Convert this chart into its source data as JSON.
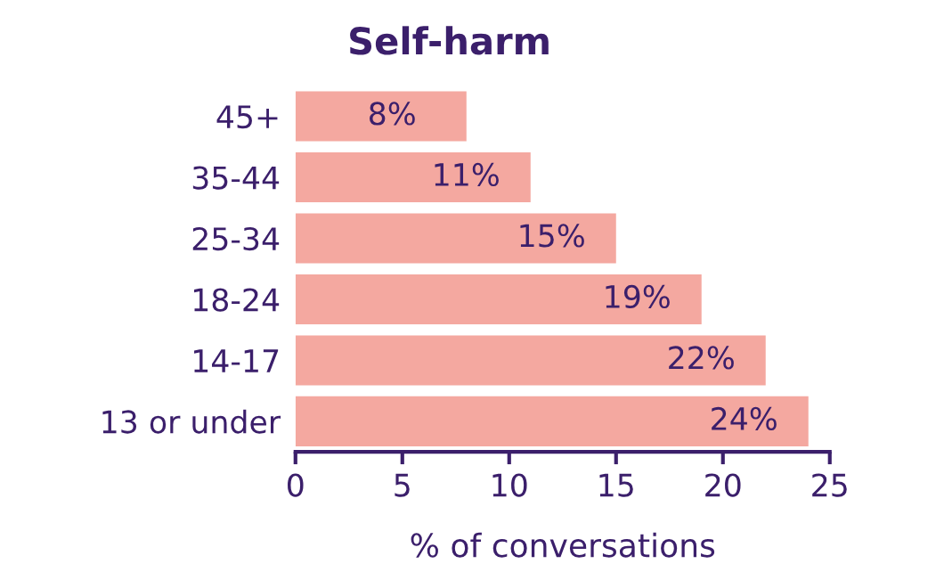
{
  "chart_data": {
    "type": "bar",
    "orientation": "horizontal",
    "title": "Self-harm",
    "xlabel": "% of conversations",
    "categories": [
      "45+",
      "35-44",
      "25-34",
      "18-24",
      "14-17",
      "13 or under"
    ],
    "values": [
      8,
      11,
      15,
      19,
      22,
      24
    ],
    "value_labels": [
      "8%",
      "11%",
      "15%",
      "19%",
      "22%",
      "24%"
    ],
    "color": "#f4a8a0",
    "xlim": [
      0,
      25
    ],
    "xticks": [
      0,
      5,
      10,
      15,
      20,
      25
    ],
    "grid": false,
    "legend": false
  }
}
